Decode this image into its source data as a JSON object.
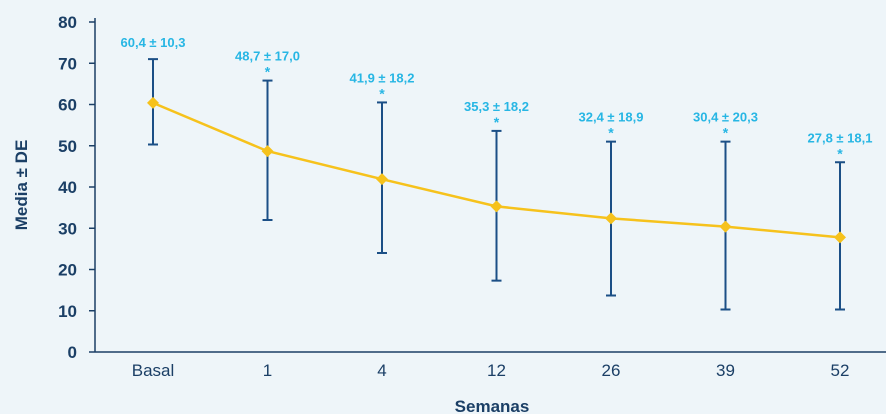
{
  "chart_data": {
    "type": "line",
    "title": "",
    "xlabel": "Semanas",
    "ylabel": "Media ± DE",
    "ylim": [
      0,
      80
    ],
    "yticks": [
      "0",
      "10",
      "20",
      "30",
      "40",
      "50",
      "60",
      "70",
      "80"
    ],
    "categories": [
      "Basal",
      "1",
      "4",
      "12",
      "26",
      "39",
      "52"
    ],
    "series": [
      {
        "values": [
          60.4,
          48.7,
          41.9,
          35.3,
          32.4,
          30.4,
          27.8
        ],
        "error_low": [
          50.3,
          32.0,
          24.0,
          17.3,
          13.7,
          10.3,
          10.3
        ],
        "error_high": [
          71.0,
          65.8,
          60.5,
          53.6,
          51.0,
          51.0,
          46.0
        ],
        "labels": [
          "60,4 ± 10,3",
          "48,7 ± 17,0",
          "41,9 ± 18,2",
          "35,3 ± 18,2",
          "32,4 ± 18,9",
          "30,4 ± 20,3",
          "27,8 ± 18,1"
        ],
        "significance": [
          false,
          true,
          true,
          true,
          true,
          true,
          true
        ]
      }
    ],
    "significance_marker": "*",
    "grid": false,
    "colors": {
      "line": "#f6c21c",
      "marker": "#f6c21c",
      "error_bar": "#1b4f86",
      "axis": "#1b3f66",
      "label": "#27b6e4",
      "background": "#eef5f9"
    }
  }
}
